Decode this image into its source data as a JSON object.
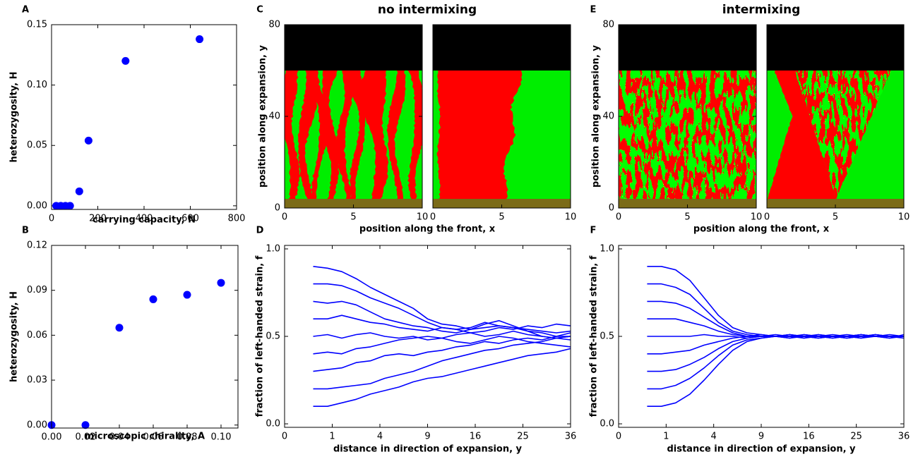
{
  "chart_data": [
    {
      "type": "scatter",
      "panel": "A",
      "xlabel": "carrying capacity, N",
      "ylabel": "heterozygosity, H",
      "x": [
        20,
        40,
        60,
        80,
        120,
        160,
        320,
        640
      ],
      "values": [
        0,
        0,
        0,
        0,
        0.012,
        0.054,
        0.12,
        0.138
      ],
      "color": "#0000ff",
      "xlim": [
        0,
        800
      ],
      "xticks": [
        0,
        200,
        400,
        600,
        800
      ],
      "ylim": [
        -0.003,
        0.15
      ],
      "yticks": [
        {
          "value": 0,
          "label": "0.00"
        },
        {
          "value": 0.05,
          "label": "0.05"
        },
        {
          "value": 0.1,
          "label": "0.10"
        },
        {
          "value": 0.15,
          "label": "0.15"
        }
      ]
    },
    {
      "type": "scatter",
      "panel": "B",
      "xlabel": "microscopic chirality, A",
      "ylabel": "heterozygosity, H",
      "x": [
        0,
        0.02,
        0.04,
        0.06,
        0.08,
        0.1
      ],
      "values": [
        0,
        0,
        0.065,
        0.084,
        0.087,
        0.095
      ],
      "color": "#0000ff",
      "xlim": [
        0,
        0.11
      ],
      "xticks": [
        {
          "value": 0,
          "label": "0.00"
        },
        {
          "value": 0.02,
          "label": "0.02"
        },
        {
          "value": 0.04,
          "label": "0.04"
        },
        {
          "value": 0.06,
          "label": "0.06"
        },
        {
          "value": 0.08,
          "label": "0.08"
        },
        {
          "value": 0.1,
          "label": "0.10"
        }
      ],
      "ylim": [
        -0.002,
        0.12
      ],
      "yticks": [
        {
          "value": 0,
          "label": "0.00"
        },
        {
          "value": 0.03,
          "label": "0.03"
        },
        {
          "value": 0.06,
          "label": "0.06"
        },
        {
          "value": 0.09,
          "label": "0.09"
        },
        {
          "value": 0.12,
          "label": "0.12"
        }
      ]
    },
    {
      "type": "image",
      "panel": "C",
      "title": "no intermixing",
      "xlabel": "position along the front, x",
      "ylabel": "position along expansion, y",
      "xlim": [
        0,
        10
      ],
      "xticks": [
        0,
        5,
        10
      ],
      "ylim": [
        0,
        80
      ],
      "yticks": [
        0,
        40,
        80
      ]
    },
    {
      "type": "line",
      "panel": "D",
      "xlabel": "distance in direction of expansion, y",
      "ylabel": "fraction of left-handed strain, f",
      "color": "#0000ff",
      "xscale": "sqrt",
      "xlim": [
        0,
        36
      ],
      "xticks": [
        0,
        1,
        4,
        9,
        16,
        25,
        36
      ],
      "ylim": [
        -0.02,
        1.02
      ],
      "yticks": [
        {
          "value": 0,
          "label": "0.0"
        },
        0.5,
        {
          "value": 1,
          "label": "1.0"
        }
      ],
      "x": [
        0.36,
        0.81,
        1.44,
        2.25,
        3.24,
        4.41,
        5.76,
        7.29,
        9,
        10.89,
        12.96,
        15.21,
        17.64,
        20.25,
        23.04,
        26.01,
        29.16,
        32.49,
        36
      ],
      "series": [
        {
          "values": [
            0.9,
            0.89,
            0.87,
            0.83,
            0.78,
            0.74,
            0.7,
            0.66,
            0.6,
            0.57,
            0.56,
            0.54,
            0.55,
            0.56,
            0.55,
            0.53,
            0.52,
            0.5,
            0.5
          ]
        },
        {
          "values": [
            0.8,
            0.8,
            0.79,
            0.76,
            0.72,
            0.69,
            0.66,
            0.62,
            0.58,
            0.55,
            0.54,
            0.55,
            0.58,
            0.56,
            0.55,
            0.54,
            0.53,
            0.52,
            0.53
          ]
        },
        {
          "values": [
            0.7,
            0.69,
            0.7,
            0.68,
            0.64,
            0.6,
            0.58,
            0.56,
            0.55,
            0.53,
            0.52,
            0.54,
            0.57,
            0.59,
            0.56,
            0.53,
            0.5,
            0.49,
            0.48
          ]
        },
        {
          "values": [
            0.6,
            0.6,
            0.62,
            0.6,
            0.58,
            0.57,
            0.55,
            0.54,
            0.53,
            0.55,
            0.54,
            0.52,
            0.53,
            0.55,
            0.54,
            0.56,
            0.55,
            0.57,
            0.56
          ]
        },
        {
          "values": [
            0.5,
            0.51,
            0.49,
            0.51,
            0.52,
            0.5,
            0.49,
            0.5,
            0.48,
            0.49,
            0.51,
            0.52,
            0.5,
            0.51,
            0.53,
            0.51,
            0.5,
            0.49,
            0.5
          ]
        },
        {
          "values": [
            0.4,
            0.41,
            0.4,
            0.43,
            0.44,
            0.46,
            0.48,
            0.49,
            0.5,
            0.49,
            0.47,
            0.46,
            0.48,
            0.5,
            0.49,
            0.47,
            0.46,
            0.45,
            0.44
          ]
        },
        {
          "values": [
            0.3,
            0.31,
            0.32,
            0.35,
            0.36,
            0.39,
            0.4,
            0.39,
            0.41,
            0.42,
            0.44,
            0.45,
            0.47,
            0.46,
            0.48,
            0.49,
            0.48,
            0.5,
            0.52
          ]
        },
        {
          "values": [
            0.2,
            0.2,
            0.21,
            0.22,
            0.23,
            0.26,
            0.28,
            0.3,
            0.33,
            0.36,
            0.38,
            0.4,
            0.42,
            0.43,
            0.45,
            0.46,
            0.47,
            0.49,
            0.5
          ]
        },
        {
          "values": [
            0.1,
            0.1,
            0.12,
            0.14,
            0.17,
            0.19,
            0.21,
            0.24,
            0.26,
            0.27,
            0.29,
            0.31,
            0.33,
            0.35,
            0.37,
            0.39,
            0.4,
            0.41,
            0.43
          ]
        }
      ]
    },
    {
      "type": "image",
      "panel": "E",
      "title": "intermixing",
      "xlabel": "position along the front, x",
      "ylabel": "position along expansion, y",
      "xlim": [
        0,
        10
      ],
      "xticks": [
        0,
        5,
        10
      ],
      "ylim": [
        0,
        80
      ],
      "yticks": [
        0,
        40,
        80
      ]
    },
    {
      "type": "line",
      "panel": "F",
      "xlabel": "distance in direction of expansion, y",
      "ylabel": "fraction of left-handed strain, f",
      "color": "#0000ff",
      "xscale": "sqrt",
      "xlim": [
        0,
        36
      ],
      "xticks": [
        0,
        1,
        4,
        9,
        16,
        25,
        36
      ],
      "ylim": [
        -0.02,
        1.02
      ],
      "yticks": [
        {
          "value": 0,
          "label": "0.0"
        },
        0.5,
        {
          "value": 1,
          "label": "1.0"
        }
      ],
      "x": [
        0.36,
        0.81,
        1.44,
        2.25,
        3.24,
        4.41,
        5.76,
        7.29,
        9,
        10.89,
        12.96,
        15.21,
        17.64,
        20.25,
        23.04,
        26.01,
        29.16,
        32.49,
        36
      ],
      "series": [
        {
          "values": [
            0.9,
            0.9,
            0.88,
            0.82,
            0.72,
            0.62,
            0.55,
            0.52,
            0.51,
            0.5,
            0.51,
            0.49,
            0.5,
            0.51,
            0.5,
            0.49,
            0.51,
            0.5,
            0.5
          ]
        },
        {
          "values": [
            0.8,
            0.8,
            0.78,
            0.74,
            0.66,
            0.58,
            0.53,
            0.51,
            0.5,
            0.51,
            0.5,
            0.5,
            0.49,
            0.5,
            0.51,
            0.5,
            0.5,
            0.49,
            0.51
          ]
        },
        {
          "values": [
            0.7,
            0.7,
            0.69,
            0.66,
            0.61,
            0.56,
            0.52,
            0.5,
            0.5,
            0.5,
            0.49,
            0.51,
            0.5,
            0.5,
            0.5,
            0.51,
            0.5,
            0.5,
            0.49
          ]
        },
        {
          "values": [
            0.6,
            0.6,
            0.6,
            0.58,
            0.56,
            0.53,
            0.51,
            0.5,
            0.51,
            0.5,
            0.5,
            0.49,
            0.51,
            0.5,
            0.49,
            0.5,
            0.51,
            0.5,
            0.5
          ]
        },
        {
          "values": [
            0.5,
            0.5,
            0.5,
            0.5,
            0.51,
            0.5,
            0.5,
            0.49,
            0.5,
            0.5,
            0.51,
            0.5,
            0.5,
            0.49,
            0.5,
            0.51,
            0.5,
            0.5,
            0.5
          ]
        },
        {
          "values": [
            0.4,
            0.4,
            0.41,
            0.42,
            0.45,
            0.47,
            0.49,
            0.5,
            0.5,
            0.5,
            0.49,
            0.5,
            0.51,
            0.5,
            0.5,
            0.49,
            0.5,
            0.51,
            0.5
          ]
        },
        {
          "values": [
            0.3,
            0.3,
            0.31,
            0.34,
            0.38,
            0.43,
            0.47,
            0.49,
            0.5,
            0.5,
            0.51,
            0.5,
            0.5,
            0.49,
            0.5,
            0.5,
            0.5,
            0.49,
            0.5
          ]
        },
        {
          "values": [
            0.2,
            0.2,
            0.22,
            0.26,
            0.32,
            0.39,
            0.45,
            0.48,
            0.49,
            0.5,
            0.5,
            0.51,
            0.5,
            0.5,
            0.49,
            0.5,
            0.51,
            0.5,
            0.5
          ]
        },
        {
          "values": [
            0.1,
            0.1,
            0.12,
            0.17,
            0.25,
            0.34,
            0.42,
            0.47,
            0.49,
            0.5,
            0.5,
            0.5,
            0.49,
            0.5,
            0.5,
            0.51,
            0.5,
            0.5,
            0.5
          ]
        }
      ]
    }
  ]
}
